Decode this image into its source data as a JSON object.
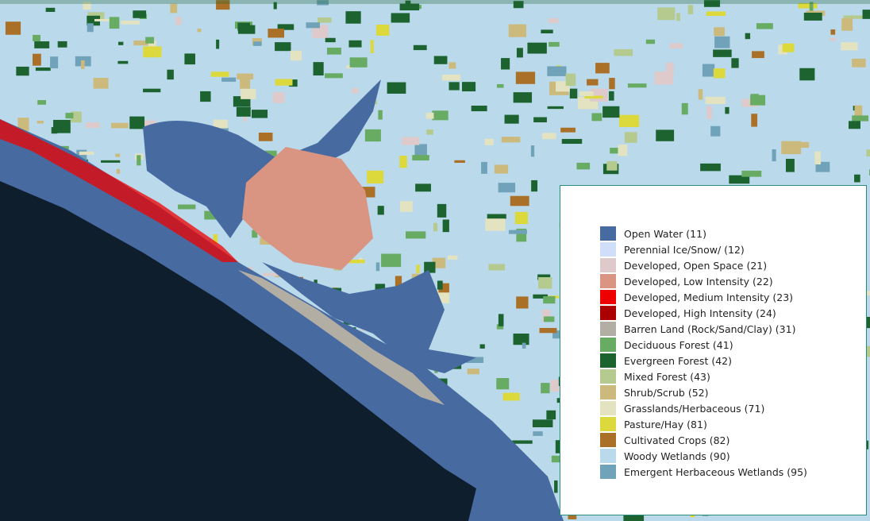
{
  "legend": {
    "items": [
      {
        "label": "Open Water (11)",
        "color": "#476ba1"
      },
      {
        "label": "Perennial Ice/Snow/ (12)",
        "color": "#d1defa"
      },
      {
        "label": "Developed, Open Space (21)",
        "color": "#decaca"
      },
      {
        "label": "Developed, Low Intensity (22)",
        "color": "#d99482"
      },
      {
        "label": "Developed, Medium Intensity (23)",
        "color": "#ee0000"
      },
      {
        "label": "Developed, High Intensity (24)",
        "color": "#ab0000"
      },
      {
        "label": "Barren Land (Rock/Sand/Clay) (31)",
        "color": "#b3aea3"
      },
      {
        "label": "Deciduous Forest (41)",
        "color": "#68ab63"
      },
      {
        "label": "Evergreen Forest (42)",
        "color": "#1c6330"
      },
      {
        "label": "Mixed Forest (43)",
        "color": "#b5ca8f"
      },
      {
        "label": "Shrub/Scrub (52)",
        "color": "#ccba7d"
      },
      {
        "label": "Grasslands/Herbaceous (71)",
        "color": "#e3e3c2"
      },
      {
        "label": "Pasture/Hay (81)",
        "color": "#dcd93d"
      },
      {
        "label": "Cultivated Crops (82)",
        "color": "#ab7028"
      },
      {
        "label": "Woody Wetlands (90)",
        "color": "#bad9eb"
      },
      {
        "label": "Emergent Herbaceous Wetlands (95)",
        "color": "#70a3ba"
      }
    ]
  }
}
